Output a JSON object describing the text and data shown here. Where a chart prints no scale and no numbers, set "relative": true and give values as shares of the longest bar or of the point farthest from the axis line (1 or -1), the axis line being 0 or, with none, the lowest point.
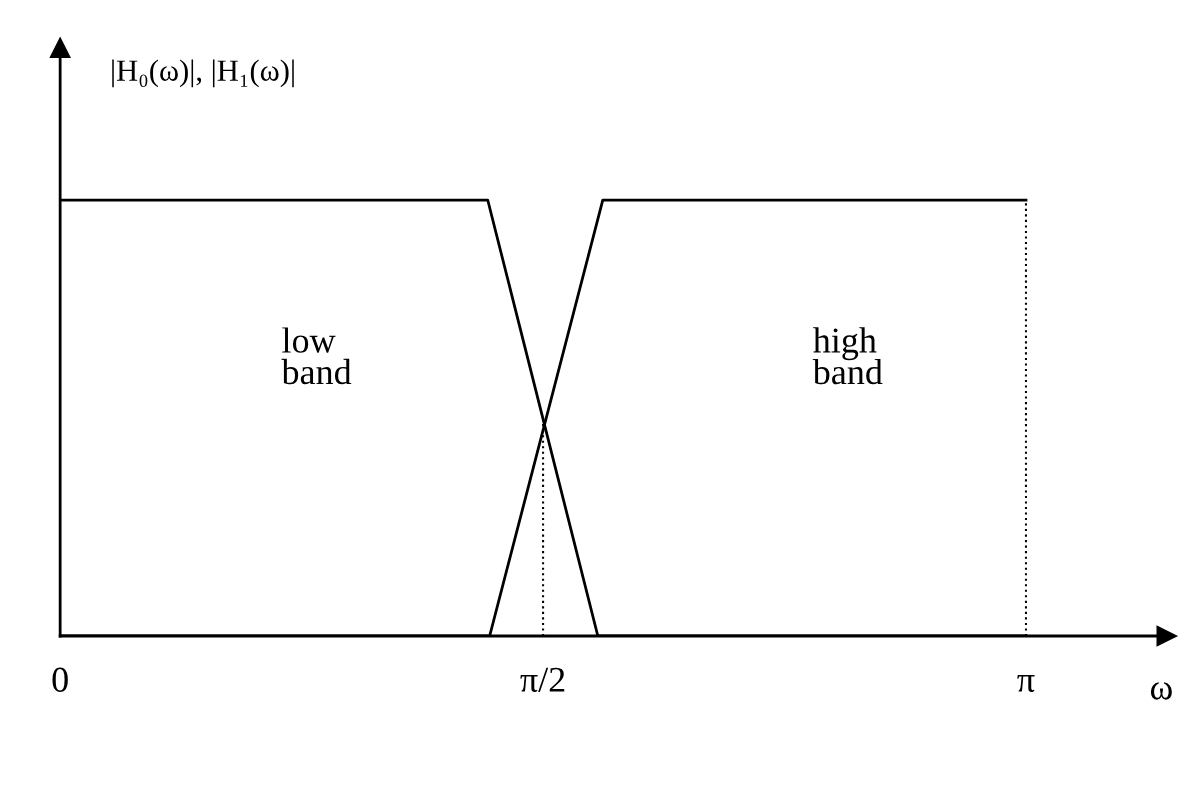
{
  "chart_data": {
    "type": "line",
    "relative": true,
    "ylabel": "|H₀(ω)|, |H₁(ω)|",
    "xlabel": "ω",
    "xlim": [
      0,
      3.6
    ],
    "xticks": [
      0,
      {
        "value": 1.5708,
        "label": "π/2"
      },
      {
        "value": 3.1416,
        "label": "π"
      }
    ],
    "grid": false,
    "legend": false,
    "marker": "none",
    "annotations": [
      "low\nband",
      "high\nband"
    ],
    "series": [
      {
        "color": "#000000",
        "x": [
          0,
          1.391,
          1.749,
          3.1416
        ],
        "values": [
          1,
          1,
          0,
          0
        ]
      },
      {
        "color": "#000000",
        "x": [
          0,
          1.397,
          1.765,
          3.1416
        ],
        "values": [
          0,
          0,
          1,
          1
        ]
      }
    ],
    "ref_lines": [
      {
        "axis": "x",
        "value": 1.5708,
        "color": "#000000",
        "line_style": "dotted"
      },
      {
        "axis": "x",
        "value": 3.1416,
        "color": "#000000",
        "line_style": "dotted"
      }
    ]
  }
}
